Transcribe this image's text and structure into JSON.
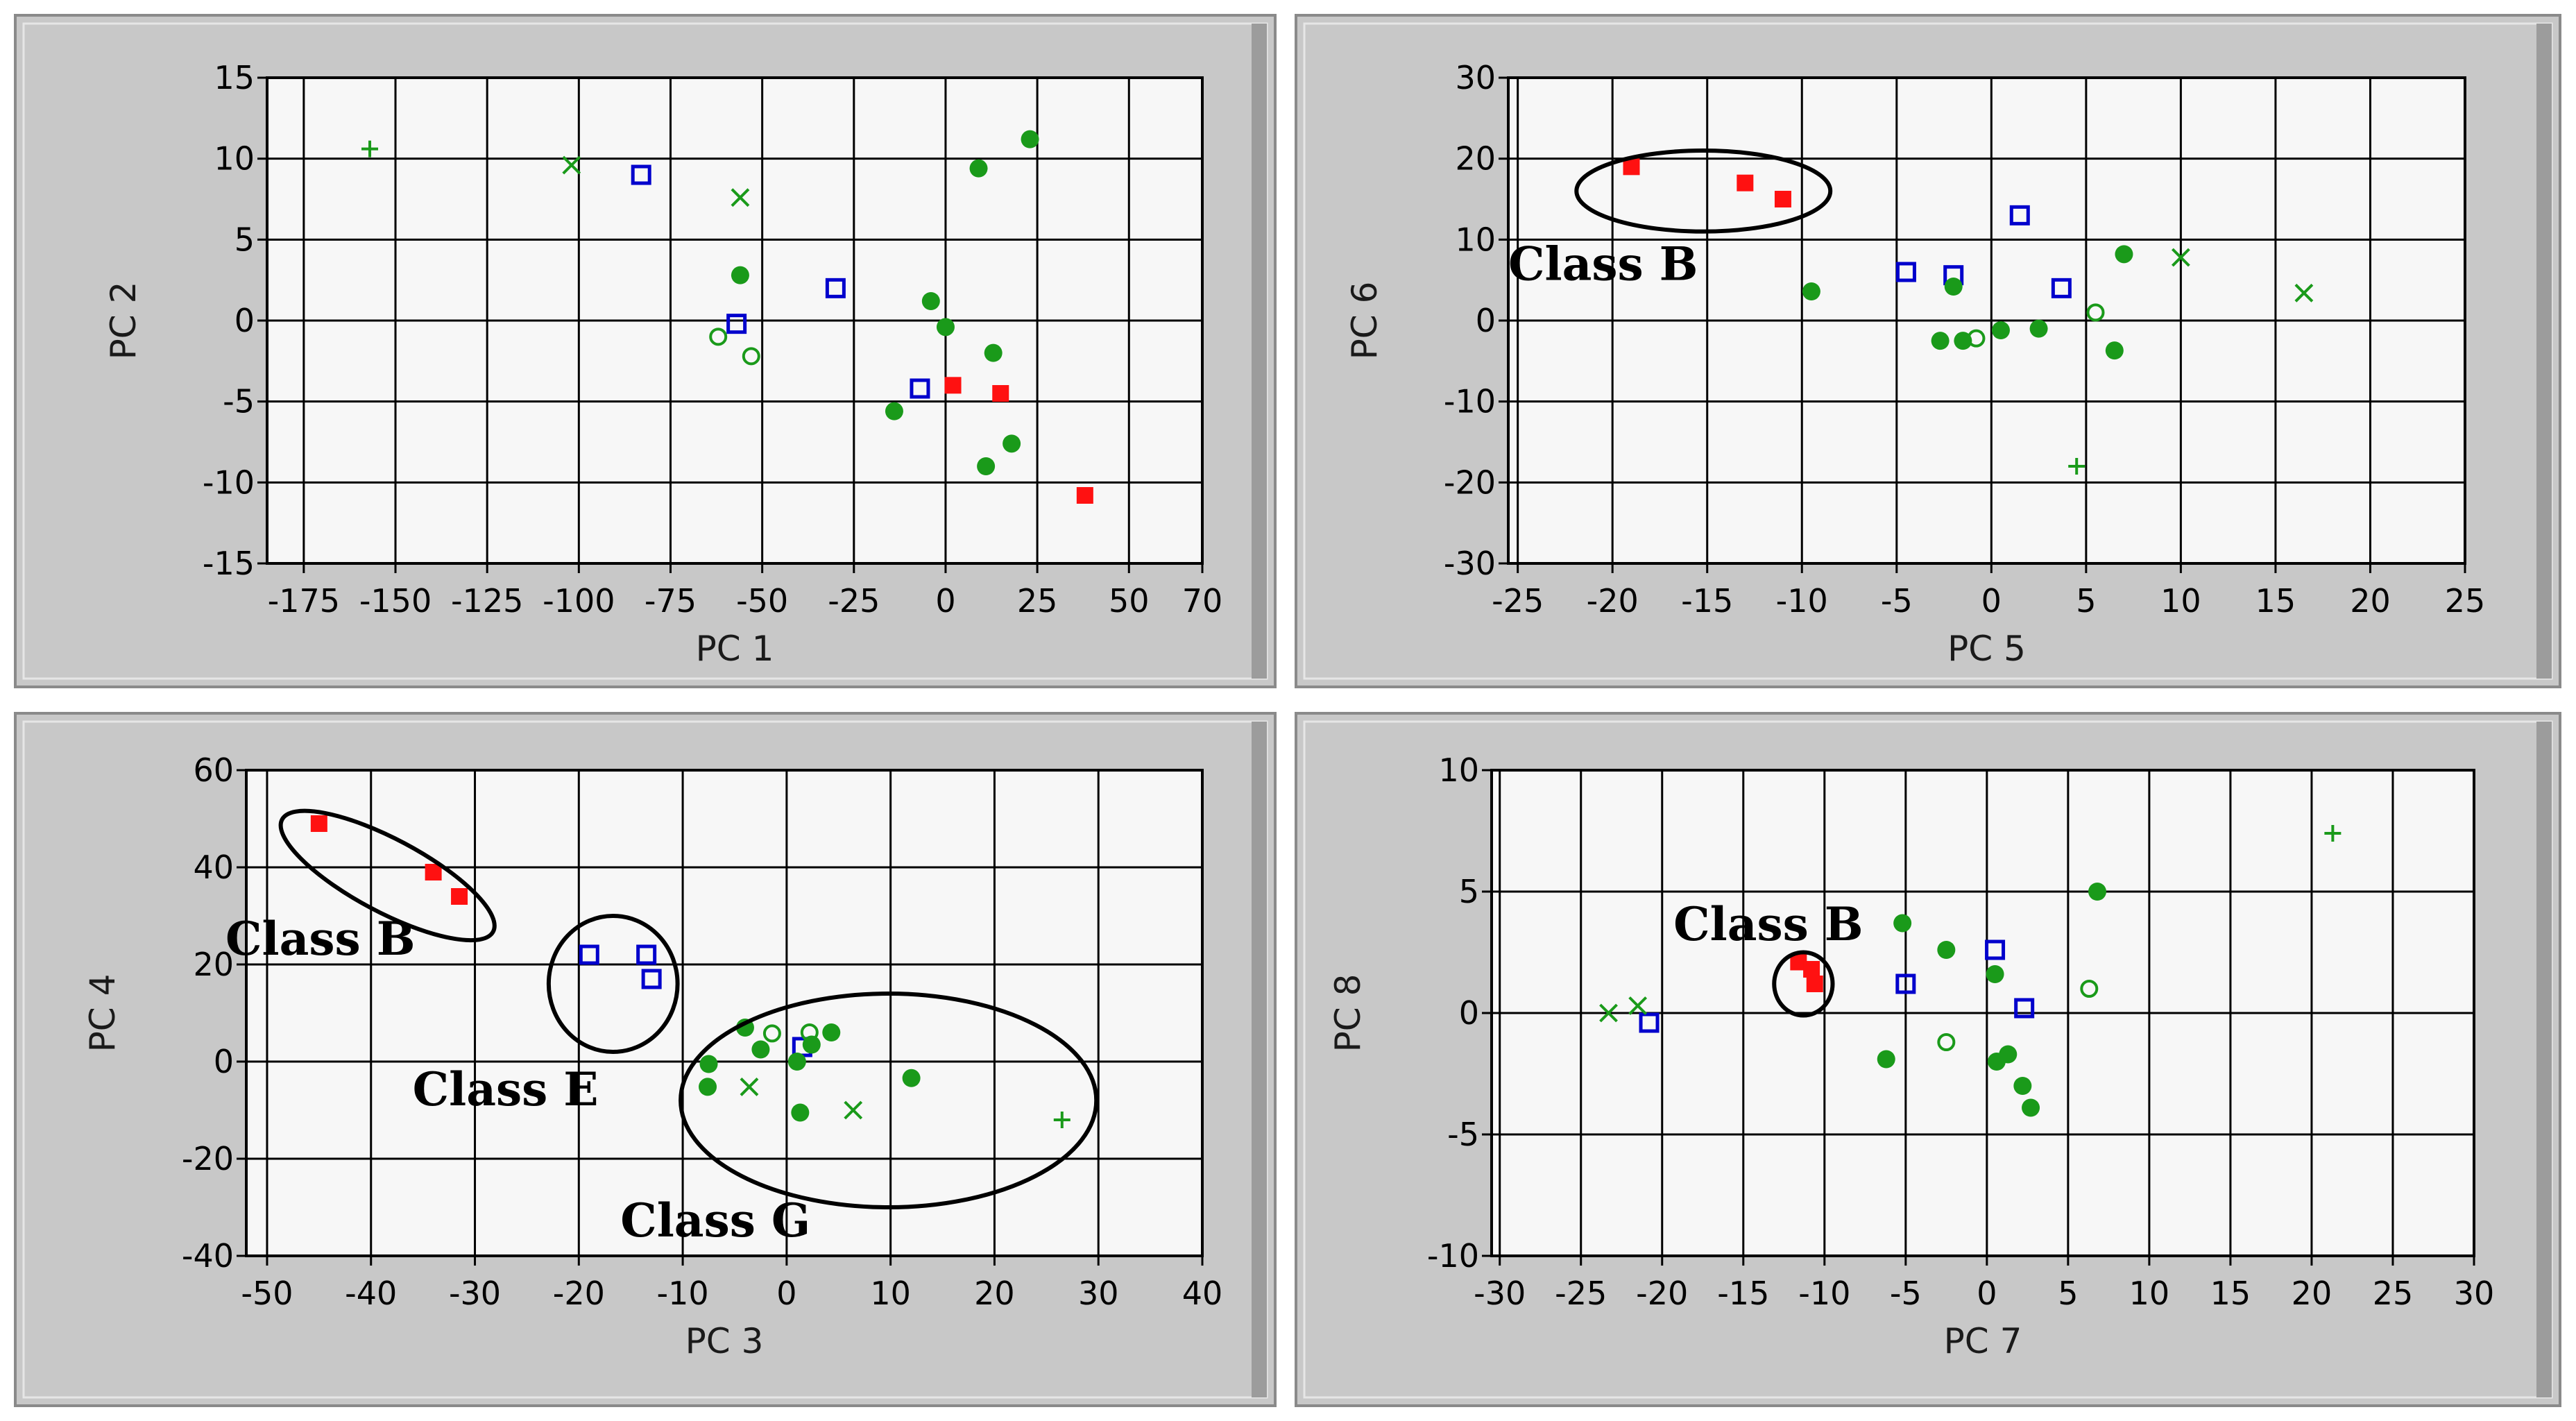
{
  "colors": {
    "class_b": "#ff1111",
    "class_e": "#0000cc",
    "class_g": "#1a9a1a",
    "panel_bg": "#c8c8c8",
    "plot_bg": "#f7f7f7",
    "grid": "#000000"
  },
  "chart_data": [
    {
      "type": "scatter",
      "xlabel": "PC 1",
      "ylabel": "PC 2",
      "xticks": [
        -175,
        -150,
        -125,
        -100,
        -75,
        -50,
        -25,
        0,
        25,
        50,
        70
      ],
      "yticks": [
        -15,
        -10,
        -5,
        0,
        5,
        10,
        15
      ],
      "xlim": [
        -185,
        70
      ],
      "ylim": [
        -15,
        15
      ],
      "grid": true,
      "annotations": [],
      "series": [
        {
          "marker": "filled-square",
          "color": "#ff1111",
          "points": [
            [
              2,
              -4
            ],
            [
              15,
              -4.5
            ],
            [
              38,
              -10.8
            ]
          ]
        },
        {
          "marker": "open-square",
          "color": "#0000cc",
          "points": [
            [
              -83,
              9
            ],
            [
              -57,
              -0.2
            ],
            [
              -30,
              2
            ],
            [
              -7,
              -4.2
            ]
          ]
        },
        {
          "marker": "filled-circle",
          "color": "#1a9a1a",
          "points": [
            [
              9,
              9.4
            ],
            [
              23,
              11.2
            ],
            [
              -56,
              2.8
            ],
            [
              -4,
              1.2
            ],
            [
              0,
              -0.4
            ],
            [
              13,
              -2
            ],
            [
              -14,
              -5.6
            ],
            [
              18,
              -7.6
            ],
            [
              11,
              -9
            ]
          ]
        },
        {
          "marker": "open-circle",
          "color": "#1a9a1a",
          "points": [
            [
              -62,
              -1
            ],
            [
              -53,
              -2.2
            ]
          ]
        },
        {
          "marker": "x",
          "color": "#1a9a1a",
          "points": [
            [
              -102,
              9.6
            ],
            [
              -56,
              7.6
            ]
          ]
        },
        {
          "marker": "plus",
          "color": "#1a9a1a",
          "points": [
            [
              -157,
              10.6
            ]
          ]
        }
      ]
    },
    {
      "type": "scatter",
      "xlabel": "PC 5",
      "ylabel": "PC 6",
      "xticks": [
        -25,
        -20,
        -15,
        -10,
        -5,
        0,
        5,
        10,
        15,
        20,
        25
      ],
      "yticks": [
        -30,
        -20,
        -10,
        0,
        10,
        20,
        30
      ],
      "xlim": [
        -25.5,
        25
      ],
      "ylim": [
        -30,
        30
      ],
      "grid": true,
      "annotations": [
        {
          "text": "Class B",
          "ellipse": {
            "cx": -15.2,
            "cy": 16,
            "rx": 6.7,
            "ry": 5
          },
          "label_at": [
            -25.5,
            5
          ]
        }
      ],
      "series": [
        {
          "marker": "filled-square",
          "color": "#ff1111",
          "points": [
            [
              -19,
              19
            ],
            [
              -13,
              17
            ],
            [
              -11,
              15
            ]
          ]
        },
        {
          "marker": "open-square",
          "color": "#0000cc",
          "points": [
            [
              -4.5,
              6
            ],
            [
              -2,
              5.6
            ],
            [
              1.5,
              13
            ],
            [
              3.7,
              4
            ]
          ]
        },
        {
          "marker": "filled-circle",
          "color": "#1a9a1a",
          "points": [
            [
              -9.5,
              3.6
            ],
            [
              -2,
              4.2
            ],
            [
              -2.7,
              -2.5
            ],
            [
              -1.5,
              -2.5
            ],
            [
              0.5,
              -1.2
            ],
            [
              2.5,
              -1
            ],
            [
              6.5,
              -3.7
            ],
            [
              7,
              8.2
            ]
          ]
        },
        {
          "marker": "open-circle",
          "color": "#1a9a1a",
          "points": [
            [
              -0.8,
              -2.2
            ],
            [
              5.5,
              1
            ]
          ]
        },
        {
          "marker": "x",
          "color": "#1a9a1a",
          "points": [
            [
              10,
              7.8
            ],
            [
              16.5,
              3.4
            ]
          ]
        },
        {
          "marker": "plus",
          "color": "#1a9a1a",
          "points": [
            [
              4.5,
              -18
            ]
          ]
        }
      ]
    },
    {
      "type": "scatter",
      "xlabel": "PC 3",
      "ylabel": "PC 4",
      "xticks": [
        -50,
        -40,
        -30,
        -20,
        -10,
        0,
        10,
        20,
        30,
        40
      ],
      "yticks": [
        -40,
        -20,
        0,
        20,
        40,
        60
      ],
      "xlim": [
        -52,
        40
      ],
      "ylim": [
        -40,
        60
      ],
      "grid": true,
      "annotations": [
        {
          "text": "Class B",
          "ellipse": {
            "cx": -38.4,
            "cy": 38.3,
            "rx": 11.5,
            "ry": 7.5,
            "rotate": 28
          },
          "label_at": [
            -54,
            22
          ]
        },
        {
          "text": "Class E",
          "ellipse": {
            "cx": -16.7,
            "cy": 16,
            "rx": 6.2,
            "ry": 14
          },
          "label_at": [
            -36,
            -9
          ]
        },
        {
          "text": "Class G",
          "ellipse": {
            "cx": 9.8,
            "cy": -8,
            "rx": 20,
            "ry": 22
          },
          "label_at": [
            -16,
            -36
          ]
        }
      ],
      "series": [
        {
          "marker": "filled-square",
          "color": "#ff1111",
          "points": [
            [
              -45,
              49
            ],
            [
              -34,
              39
            ],
            [
              -31.5,
              34
            ]
          ]
        },
        {
          "marker": "open-square",
          "color": "#0000cc",
          "points": [
            [
              -19,
              22
            ],
            [
              -13.5,
              22
            ],
            [
              -13,
              17
            ],
            [
              1.5,
              3
            ]
          ]
        },
        {
          "marker": "filled-circle",
          "color": "#1a9a1a",
          "points": [
            [
              -7.5,
              -0.5
            ],
            [
              -7.6,
              -5.2
            ],
            [
              -4,
              7
            ],
            [
              -2.5,
              2.5
            ],
            [
              1,
              0
            ],
            [
              1.3,
              -10.5
            ],
            [
              2.4,
              3.5
            ],
            [
              4.3,
              6
            ],
            [
              12,
              -3.4
            ]
          ]
        },
        {
          "marker": "open-circle",
          "color": "#1a9a1a",
          "points": [
            [
              -1.4,
              5.8
            ],
            [
              2.2,
              6
            ]
          ]
        },
        {
          "marker": "x",
          "color": "#1a9a1a",
          "points": [
            [
              -3.6,
              -5.2
            ],
            [
              6.4,
              -10
            ]
          ]
        },
        {
          "marker": "plus",
          "color": "#1a9a1a",
          "points": [
            [
              26.5,
              -12
            ]
          ]
        }
      ]
    },
    {
      "type": "scatter",
      "xlabel": "PC 7",
      "ylabel": "PC 8",
      "xticks": [
        -30,
        -25,
        -20,
        -15,
        -10,
        -5,
        0,
        5,
        10,
        15,
        20,
        25,
        30
      ],
      "yticks": [
        -10,
        -5,
        0,
        5,
        10
      ],
      "xlim": [
        -30.5,
        30
      ],
      "ylim": [
        -10,
        10
      ],
      "grid": true,
      "annotations": [
        {
          "text": "Class B",
          "ellipse": {
            "cx": -11.3,
            "cy": 1.2,
            "rx": 1.8,
            "ry": 1.3
          },
          "label_at": [
            -19.3,
            3
          ]
        }
      ],
      "series": [
        {
          "marker": "filled-square",
          "color": "#ff1111",
          "points": [
            [
              -11.6,
              2.1
            ],
            [
              -10.8,
              1.8
            ],
            [
              -10.6,
              1.2
            ]
          ]
        },
        {
          "marker": "open-square",
          "color": "#0000cc",
          "points": [
            [
              -20.8,
              -0.4
            ],
            [
              -5,
              1.2
            ],
            [
              0.5,
              2.6
            ],
            [
              2.3,
              0.2
            ]
          ]
        },
        {
          "marker": "filled-circle",
          "color": "#1a9a1a",
          "points": [
            [
              -6.2,
              -1.9
            ],
            [
              -5.2,
              3.7
            ],
            [
              -2.5,
              2.6
            ],
            [
              0.5,
              1.6
            ],
            [
              0.6,
              -2
            ],
            [
              1.3,
              -1.7
            ],
            [
              2.2,
              -3
            ],
            [
              2.7,
              -3.9
            ],
            [
              6.8,
              5
            ]
          ]
        },
        {
          "marker": "open-circle",
          "color": "#1a9a1a",
          "points": [
            [
              -2.5,
              -1.2
            ],
            [
              6.3,
              1
            ]
          ]
        },
        {
          "marker": "x",
          "color": "#1a9a1a",
          "points": [
            [
              -23.3,
              0
            ],
            [
              -21.5,
              0.3
            ]
          ]
        },
        {
          "marker": "plus",
          "color": "#1a9a1a",
          "points": [
            [
              21.3,
              7.4
            ]
          ]
        }
      ]
    }
  ]
}
